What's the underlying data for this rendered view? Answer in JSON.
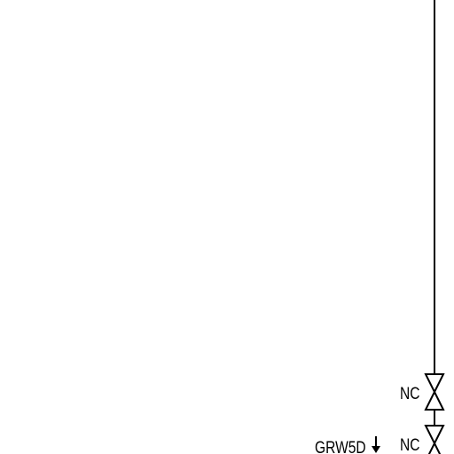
{
  "schematic": {
    "valve_upper": {
      "state_label": "NC",
      "icon": "gate-valve-icon"
    },
    "valve_lower": {
      "state_label": "NC",
      "icon": "gate-valve-icon"
    },
    "drain_tag": {
      "label": "GRW5D",
      "icon": "down-arrow-icon"
    }
  },
  "colors": {
    "background": "#ffffff",
    "line": "#000000"
  }
}
